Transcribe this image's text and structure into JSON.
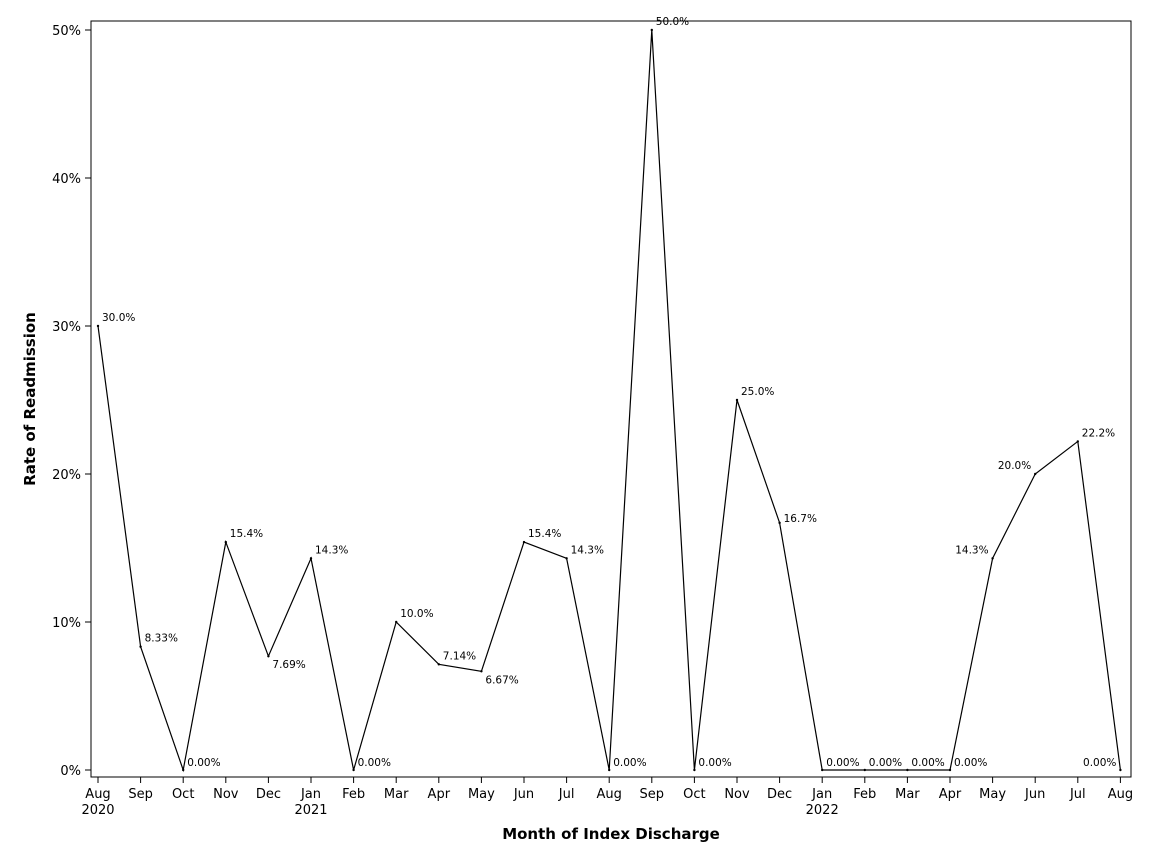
{
  "chart_data": {
    "type": "line",
    "xlabel": "Month of Index Discharge",
    "ylabel": "Rate of Readmission",
    "ylim": [
      0,
      50
    ],
    "yticks": [
      "0%",
      "10%",
      "20%",
      "30%",
      "40%",
      "50%"
    ],
    "grid": false,
    "line_color": "#000000",
    "categories": [
      "Aug",
      "Sep",
      "Oct",
      "Nov",
      "Dec",
      "Jan",
      "Feb",
      "Mar",
      "Apr",
      "May",
      "Jun",
      "Jul",
      "Aug",
      "Sep",
      "Oct",
      "Nov",
      "Dec",
      "Jan",
      "Feb",
      "Mar",
      "Apr",
      "May",
      "Jun",
      "Jul",
      "Aug"
    ],
    "category_years": [
      "2020",
      "",
      "",
      "",
      "",
      "2021",
      "",
      "",
      "",
      "",
      "",
      "",
      "",
      "",
      "",
      "",
      "",
      "2022",
      "",
      "",
      "",
      "",
      "",
      "",
      ""
    ],
    "series": [
      {
        "values": [
          30.0,
          8.33,
          0.0,
          15.4,
          7.69,
          14.3,
          0.0,
          10.0,
          7.14,
          6.67,
          15.4,
          14.3,
          0.0,
          50.0,
          0.0,
          25.0,
          16.7,
          0.0,
          0.0,
          0.0,
          0.0,
          14.3,
          20.0,
          22.2,
          0.0
        ],
        "labels": [
          "30.0%",
          "8.33%",
          "0.00%",
          "15.4%",
          "7.69%",
          "14.3%",
          "0.00%",
          "10.0%",
          "7.14%",
          "6.67%",
          "15.4%",
          "14.3%",
          "0.00%",
          "50.0%",
          "0.00%",
          "25.0%",
          "16.7%",
          "0.00%",
          "0.00%",
          "0.00%",
          "0.00%",
          "14.3%",
          "20.0%",
          "22.2%",
          "0.00%"
        ]
      }
    ]
  }
}
